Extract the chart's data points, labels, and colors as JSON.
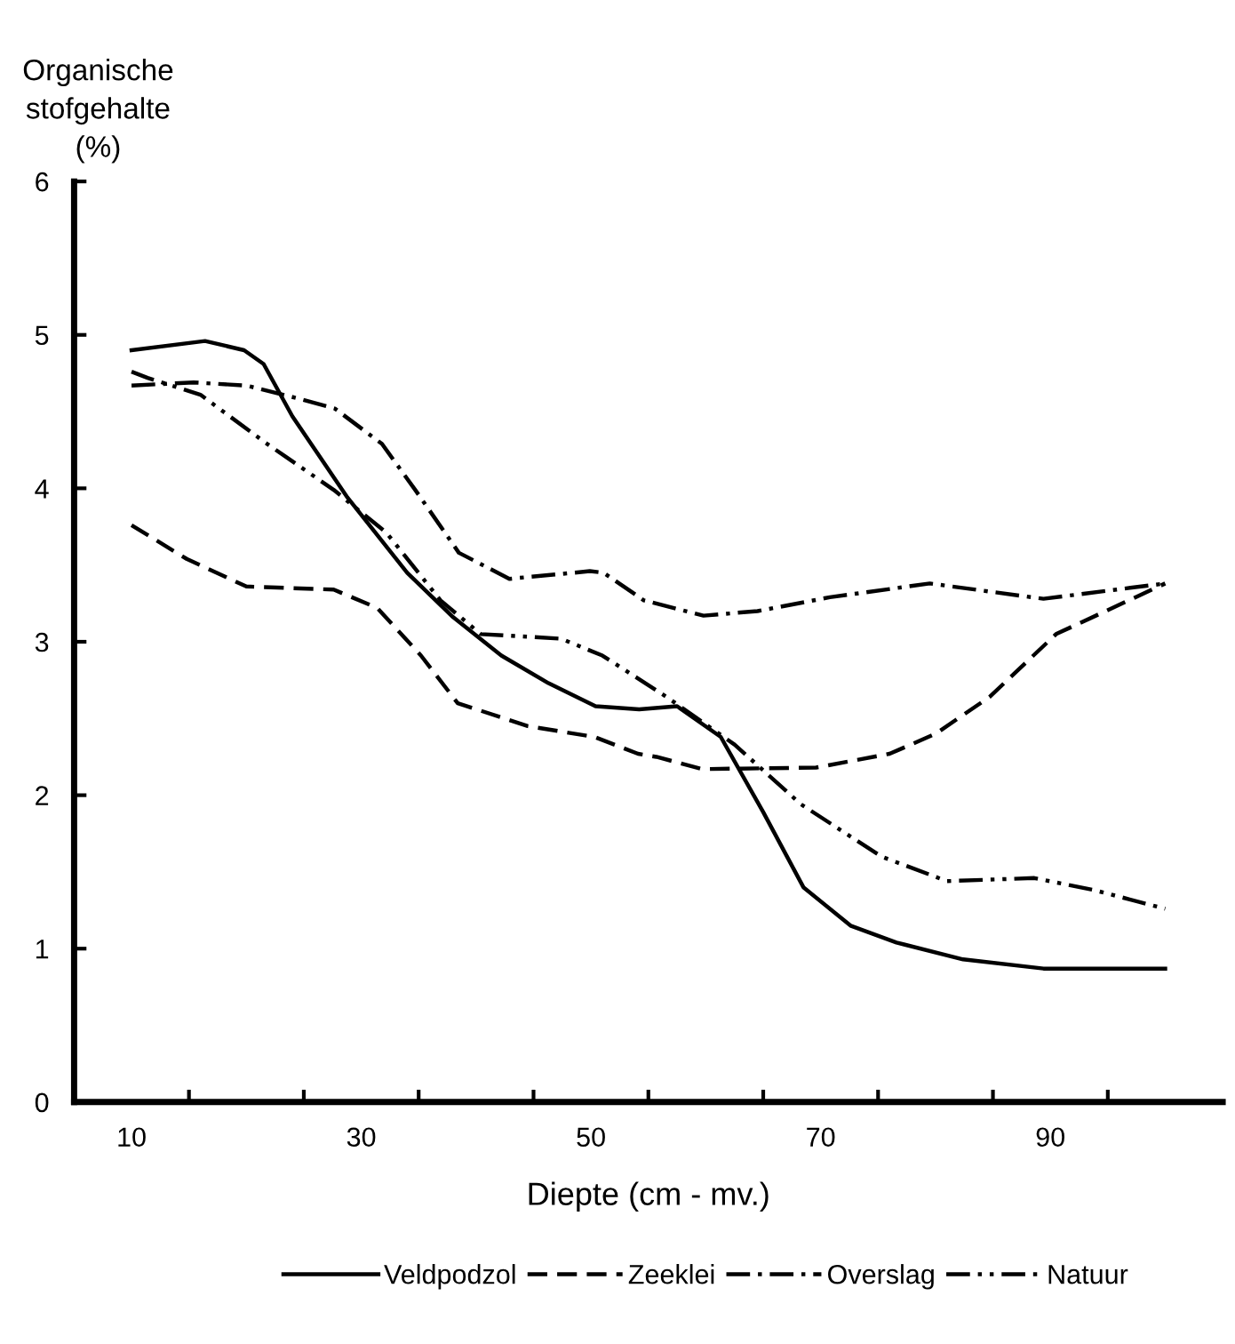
{
  "chart_data": {
    "type": "line",
    "ylabel": "Organische\nstofgehalte\n(%)",
    "xlabel": "Diepte (cm - mv.)",
    "xlim": [
      5,
      105
    ],
    "xticks": [
      10,
      30,
      50,
      70,
      90,
      {
        "value": 15,
        "label": null
      },
      {
        "value": 25,
        "label": null
      },
      {
        "value": 35,
        "label": null
      },
      {
        "value": 45,
        "label": null
      },
      {
        "value": 55,
        "label": null
      },
      {
        "value": 65,
        "label": null
      },
      {
        "value": 75,
        "label": null
      },
      {
        "value": 85,
        "label": null
      },
      {
        "value": 95,
        "label": null
      }
    ],
    "ylim": [
      0,
      6
    ],
    "yticks": [
      0,
      1,
      2,
      3,
      4,
      5,
      6
    ],
    "grid": false,
    "legend": "bottom",
    "marker": "none",
    "series": [
      {
        "name": "Veldpodzol",
        "color": "#000000",
        "line_style": "solid",
        "x": [
          10,
          16.4,
          19.8,
          21.5,
          24,
          28.8,
          34,
          38,
          42.2,
          46.3,
          50.4,
          54.2,
          57.5,
          61.3,
          65,
          68.5,
          72.6,
          76.6,
          82.4,
          89.4,
          100
        ],
        "values": [
          4.9,
          4.96,
          4.9,
          4.81,
          4.47,
          3.94,
          3.45,
          3.16,
          2.91,
          2.73,
          2.58,
          2.56,
          2.58,
          2.38,
          1.89,
          1.4,
          1.15,
          1.04,
          0.93,
          0.87,
          0.87
        ]
      },
      {
        "name": "Zeeklei",
        "color": "#000000",
        "line_style": "dashed",
        "x": [
          10,
          14.8,
          20,
          27.6,
          31.4,
          35.2,
          38.4,
          44.5,
          50.3,
          54.1,
          55.7,
          59.7,
          69.6,
          76,
          80,
          84.7,
          90.5,
          100
        ],
        "values": [
          3.76,
          3.54,
          3.36,
          3.34,
          3.22,
          2.91,
          2.6,
          2.45,
          2.38,
          2.27,
          2.25,
          2.17,
          2.18,
          2.27,
          2.4,
          2.64,
          3.05,
          3.38
        ]
      },
      {
        "name": "Overslag",
        "color": "#000000",
        "line_style": "dashdot",
        "x": [
          10,
          15.4,
          20,
          24.8,
          27.7,
          31.8,
          34.7,
          38.5,
          42.9,
          49.9,
          51.1,
          54.6,
          59.8,
          64.5,
          70.8,
          79.5,
          89.4,
          100
        ],
        "values": [
          4.67,
          4.69,
          4.67,
          4.58,
          4.52,
          4.29,
          3.99,
          3.58,
          3.41,
          3.46,
          3.45,
          3.27,
          3.17,
          3.2,
          3.29,
          3.38,
          3.28,
          3.38
        ]
      },
      {
        "name": "Natuur",
        "color": "#000000",
        "line_style": "dashdotdot",
        "x": [
          10,
          11.4,
          16,
          21.8,
          27.6,
          32.2,
          36.9,
          40.4,
          47.4,
          51,
          56.6,
          62.5,
          68.3,
          75.3,
          81,
          88.6,
          93.9,
          100
        ],
        "values": [
          4.76,
          4.72,
          4.61,
          4.29,
          3.99,
          3.71,
          3.27,
          3.05,
          3.02,
          2.91,
          2.64,
          2.33,
          1.94,
          1.6,
          1.44,
          1.46,
          1.38,
          1.26
        ]
      }
    ]
  }
}
